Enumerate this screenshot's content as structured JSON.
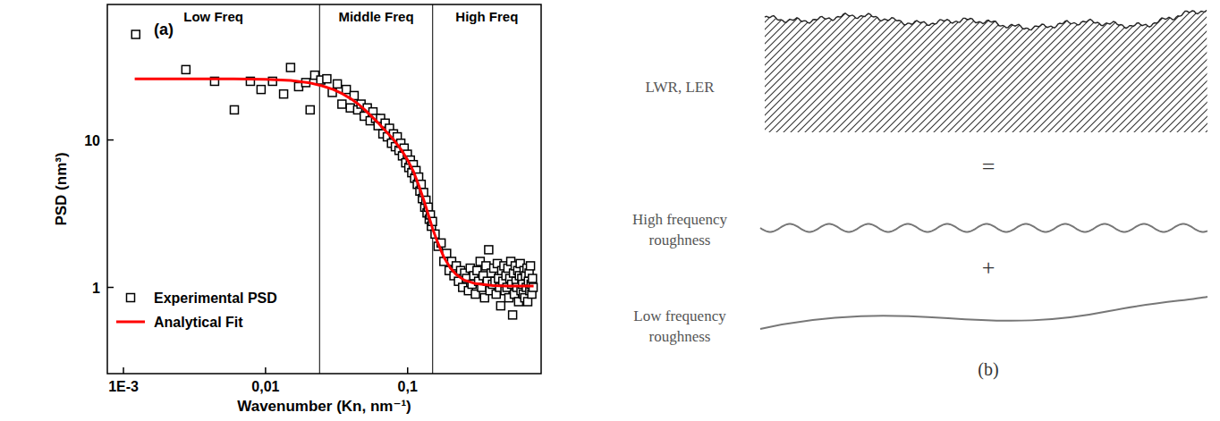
{
  "chart_data": {
    "type": "scatter",
    "panel_label": "(a)",
    "x_label": "Wavenumber (Kn, nm⁻¹)",
    "y_label": "PSD (nm³)",
    "log": true,
    "grid": false,
    "legend": "lower left",
    "xlim": [
      0.00077,
      0.87
    ],
    "ylim": [
      0.26,
      83
    ],
    "xticks": [
      {
        "value": 0.001,
        "label": "1E-3"
      },
      {
        "value": 0.01,
        "label": "0,01"
      },
      {
        "value": 0.1,
        "label": "0,1"
      }
    ],
    "yticks": [
      1,
      10
    ],
    "dividers": [
      0.024,
      0.15
    ],
    "region_labels": [
      "Low Freq",
      "Middle Freq",
      "High Freq"
    ],
    "series": [
      {
        "name": "Experimental PSD",
        "type": "scatter",
        "marker": "square",
        "color": "#000000",
        "x": [
          0.00122,
          0.00275,
          0.00438,
          0.00603,
          0.00782,
          0.0093,
          0.0112,
          0.0134,
          0.015,
          0.0171,
          0.0192,
          0.0206,
          0.0222,
          0.0245,
          0.027,
          0.0295,
          0.032,
          0.0345,
          0.037,
          0.0395,
          0.042,
          0.0445,
          0.047,
          0.0495,
          0.052,
          0.0545,
          0.057,
          0.0595,
          0.062,
          0.0645,
          0.067,
          0.0695,
          0.072,
          0.0745,
          0.077,
          0.0795,
          0.082,
          0.0845,
          0.087,
          0.0895,
          0.092,
          0.0945,
          0.097,
          0.0995,
          0.102,
          0.1045,
          0.107,
          0.1095,
          0.112,
          0.1145,
          0.117,
          0.1195,
          0.122,
          0.1245,
          0.127,
          0.1295,
          0.132,
          0.1345,
          0.137,
          0.1395,
          0.142,
          0.1445,
          0.147,
          0.1495,
          0.156,
          0.164,
          0.172,
          0.18,
          0.188,
          0.196,
          0.204,
          0.212,
          0.22,
          0.228,
          0.236,
          0.244,
          0.252,
          0.26,
          0.268,
          0.276,
          0.284,
          0.292,
          0.3,
          0.308,
          0.316,
          0.324,
          0.332,
          0.34,
          0.348,
          0.356,
          0.364,
          0.372,
          0.38,
          0.388,
          0.396,
          0.404,
          0.412,
          0.42,
          0.428,
          0.436,
          0.444,
          0.452,
          0.46,
          0.468,
          0.476,
          0.484,
          0.492,
          0.5,
          0.508,
          0.516,
          0.524,
          0.532,
          0.54,
          0.548,
          0.556,
          0.564,
          0.572,
          0.58,
          0.588,
          0.596,
          0.604,
          0.612,
          0.62,
          0.628,
          0.636,
          0.644,
          0.652,
          0.66,
          0.668,
          0.676,
          0.684,
          0.692,
          0.7,
          0.708,
          0.716,
          0.724,
          0.732,
          0.74,
          0.748,
          0.756,
          0.764
        ],
        "values": [
          52,
          30,
          25,
          16,
          25,
          22,
          25,
          20.5,
          31,
          23,
          24.5,
          16,
          27.5,
          25.5,
          26,
          21,
          24,
          17.5,
          22,
          16.5,
          20,
          16,
          17.5,
          14.5,
          16.5,
          13.5,
          15.5,
          14,
          12.5,
          14,
          11,
          13,
          10.5,
          12,
          9.5,
          11,
          9,
          10.5,
          8.5,
          9.5,
          7.8,
          8.8,
          7,
          8,
          6.5,
          7.3,
          6,
          6.8,
          5.5,
          6.2,
          5,
          5.6,
          4.5,
          5,
          4,
          4.4,
          3.5,
          3.9,
          3.2,
          3.5,
          2.9,
          3.1,
          2.6,
          2.8,
          2.3,
          1.9,
          2.0,
          1.5,
          1.7,
          1.3,
          1.5,
          1.2,
          1.4,
          1.1,
          1.3,
          1.0,
          1.25,
          1.15,
          0.95,
          1.35,
          1.05,
          1.2,
          0.9,
          1.3,
          1.1,
          1.5,
          1.0,
          1.2,
          0.85,
          1.4,
          1.1,
          1.8,
          0.95,
          1.25,
          1.05,
          1.35,
          1.1,
          0.9,
          1.45,
          1.15,
          1.0,
          0.75,
          1.3,
          1.1,
          1.4,
          0.95,
          1.2,
          1.0,
          1.35,
          0.85,
          1.15,
          1.5,
          1.05,
          0.65,
          1.25,
          0.9,
          1.4,
          1.1,
          1.0,
          1.3,
          0.8,
          1.2,
          1.45,
          0.95,
          1.15,
          1.05,
          0.9,
          1.3,
          0.85,
          1.2,
          1.0,
          1.35,
          0.8,
          1.1,
          1.25,
          0.95,
          1.4,
          1.05,
          0.9,
          1.15,
          1.0
        ]
      },
      {
        "name": "Analytical Fit",
        "type": "line",
        "line_style": "solid",
        "color": "#ff0000",
        "x": [
          0.0012,
          0.003,
          0.006,
          0.01,
          0.015,
          0.02,
          0.025,
          0.03,
          0.035,
          0.04,
          0.045,
          0.05,
          0.06,
          0.07,
          0.08,
          0.09,
          0.1,
          0.11,
          0.12,
          0.13,
          0.14,
          0.15,
          0.16,
          0.18,
          0.2,
          0.22,
          0.25,
          0.3,
          0.4,
          0.5,
          0.6,
          0.77
        ],
        "values": [
          26,
          26,
          26,
          25.8,
          25.3,
          24.5,
          23.3,
          22,
          20.5,
          19,
          17.5,
          16,
          13.5,
          11.5,
          10,
          8.6,
          7.3,
          6.1,
          4.9,
          3.9,
          3.1,
          2.5,
          2.1,
          1.6,
          1.35,
          1.22,
          1.12,
          1.06,
          1.03,
          1.02,
          1.02,
          1.02
        ]
      }
    ]
  },
  "diagram": {
    "panel_label": "(b)",
    "lhs": "LWR, LER",
    "operators": [
      "=",
      "+"
    ],
    "terms": [
      "High frequency roughness",
      "Low frequency roughness"
    ]
  }
}
